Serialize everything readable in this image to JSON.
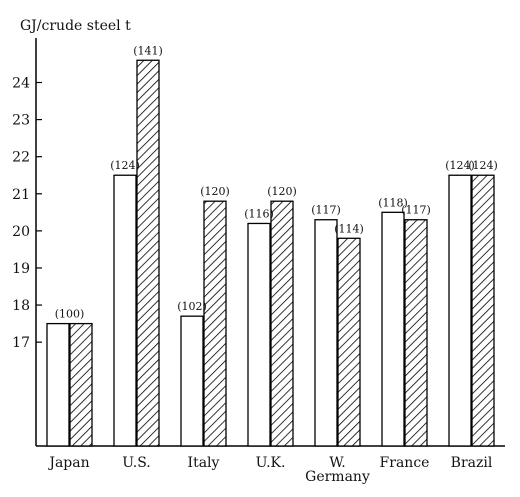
{
  "chart_data": {
    "type": "bar",
    "ylabel": "GJ/crude steel t",
    "categories": [
      "Japan",
      "U.S.",
      "Italy",
      "U.K.",
      "W. Germany",
      "France",
      "Brazil"
    ],
    "category_lines": [
      [
        "Japan"
      ],
      [
        "U.S."
      ],
      [
        "Italy"
      ],
      [
        "U.K."
      ],
      [
        "W.",
        "Germany"
      ],
      [
        "France"
      ],
      [
        "Brazil"
      ]
    ],
    "series": [
      {
        "style": "plain",
        "values": [
          17.5,
          21.5,
          17.7,
          20.2,
          20.3,
          20.5,
          21.5
        ],
        "labels": [
          "(100)",
          "(124)",
          "(102)",
          "(116)",
          "(117)",
          "(118)",
          "(124)"
        ]
      },
      {
        "style": "hatched",
        "values": [
          17.5,
          24.6,
          20.8,
          20.8,
          19.8,
          20.3,
          21.5
        ],
        "labels": [
          "",
          "(141)",
          "(120)",
          "(120)",
          "(114)",
          "(117)",
          "(124)"
        ]
      }
    ],
    "yticks": [
      17,
      18,
      19,
      20,
      21,
      22,
      23,
      24
    ],
    "ylim": [
      14.2,
      25.2
    ],
    "grid": false,
    "colors": {
      "plain": "#ffffff",
      "hatch": "#000000",
      "axis": "#000000"
    }
  }
}
